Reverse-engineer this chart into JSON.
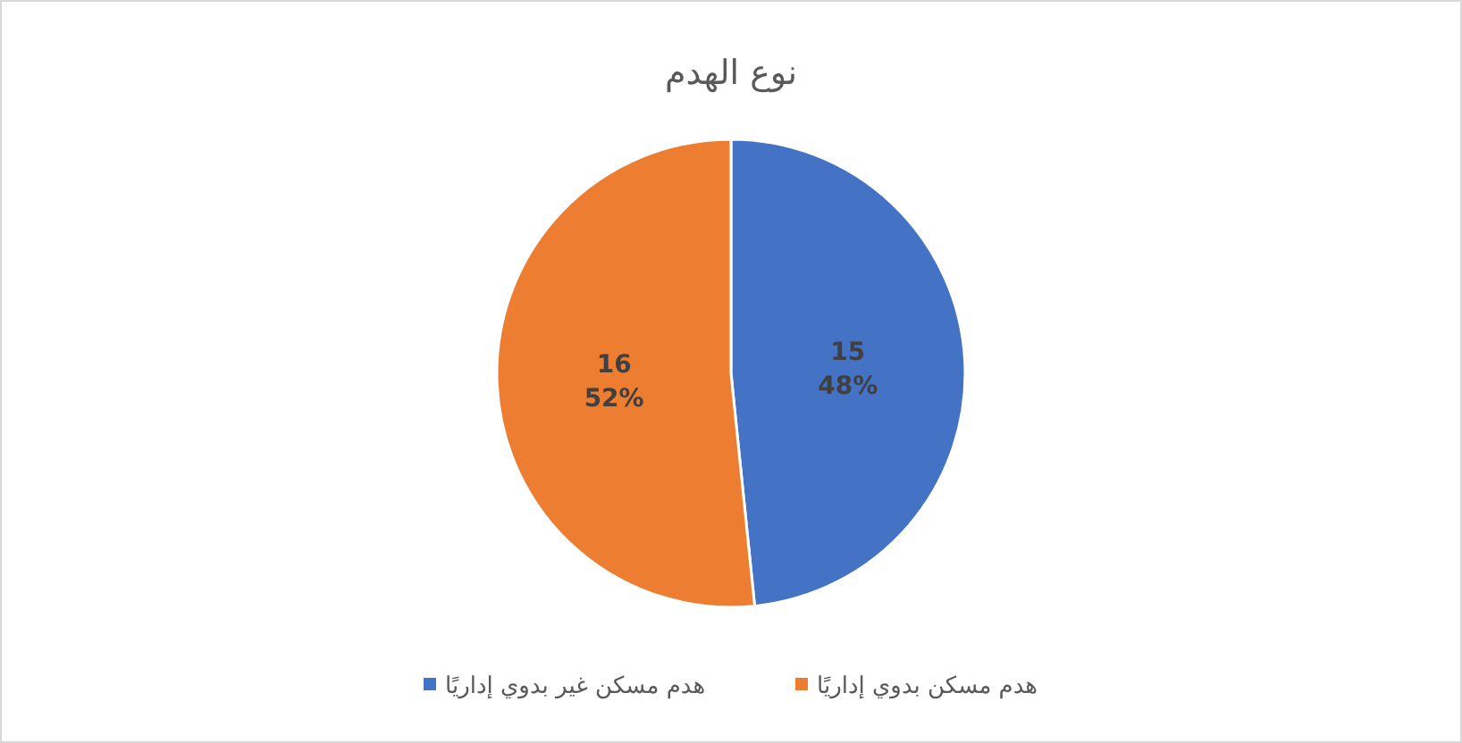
{
  "chart_data": {
    "type": "pie",
    "title": "نوع الهدم",
    "categories": [
      "هدم مسكن غير بدوي إداريًا",
      "هدم مسكن بدوي إداريًا"
    ],
    "values": [
      15,
      16
    ],
    "colors": [
      "#4472c4",
      "#ed7d31"
    ],
    "value_labels": [
      "15 48%",
      "16 52%"
    ],
    "legend": "bottom"
  }
}
